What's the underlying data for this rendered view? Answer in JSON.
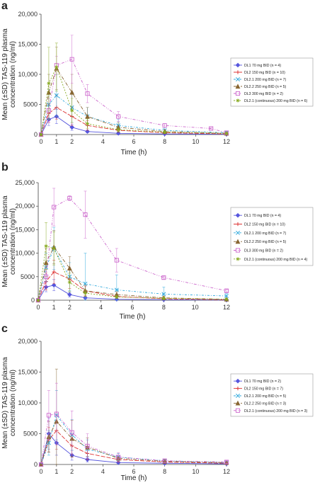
{
  "colors": {
    "DL1": "#5555dd",
    "DL2": "#dd3333",
    "DL2.1": "#33aadd",
    "DL2.2": "#886633",
    "DL3": "#cc66cc",
    "DL2.1c": "#88aa22"
  },
  "chart_data": [
    {
      "panel": "a",
      "type": "line",
      "xlabel": "Time (h)",
      "ylabel": "Mean (±SD) TAS-119 plasma concentration (ng/ml)",
      "xlim": [
        0,
        12
      ],
      "ylim": [
        0,
        20000
      ],
      "xticks": [
        0,
        1,
        2,
        4,
        6,
        8,
        10,
        12
      ],
      "yticks": [
        0,
        5000,
        10000,
        15000,
        20000
      ],
      "ytick_labels": [
        "0",
        "5000",
        "10,000",
        "15,000",
        "20,000"
      ],
      "legend_position": "right",
      "series": [
        {
          "name": "DL1 70 mg BID (n = 4)",
          "color_key": "DL1",
          "marker": "diamond",
          "x": [
            0,
            0.5,
            1,
            2,
            3,
            5,
            8,
            12
          ],
          "y": [
            0,
            2500,
            3000,
            1200,
            500,
            200,
            100,
            50
          ],
          "sd": [
            0,
            1000,
            1200,
            500,
            200,
            100,
            50,
            20
          ]
        },
        {
          "name": "DL2 150 mg BID (n = 10)",
          "color_key": "DL2",
          "marker": "plus",
          "x": [
            0,
            0.5,
            1,
            2,
            3,
            5,
            8,
            12
          ],
          "y": [
            0,
            3500,
            4500,
            3000,
            1500,
            700,
            300,
            100
          ],
          "sd": [
            0,
            1500,
            2000,
            1500,
            800,
            300,
            100,
            50
          ]
        },
        {
          "name": "DL2.1 200 mg BID (n = 7)",
          "color_key": "DL2.1",
          "marker": "x",
          "x": [
            0,
            0.5,
            1,
            2,
            3,
            5,
            8,
            12
          ],
          "y": [
            0,
            5000,
            6500,
            4500,
            3000,
            1500,
            700,
            300
          ],
          "sd": [
            0,
            2500,
            3500,
            2500,
            1500,
            1000,
            500,
            200
          ]
        },
        {
          "name": "DL2.2 250 mg BID (n = 5)",
          "color_key": "DL2.2",
          "marker": "triangle",
          "x": [
            0,
            0.5,
            1,
            2,
            3,
            5,
            8,
            12
          ],
          "y": [
            0,
            7000,
            11000,
            7000,
            3000,
            1200,
            500,
            200
          ],
          "sd": [
            0,
            3000,
            3500,
            3000,
            1500,
            800,
            300,
            100
          ]
        },
        {
          "name": "DL3 300 mg BID (n = 2)",
          "color_key": "DL3",
          "marker": "square",
          "x": [
            0,
            0.5,
            1,
            2,
            3,
            5,
            8,
            11,
            12
          ],
          "y": [
            0,
            4000,
            11500,
            12500,
            6800,
            3000,
            1500,
            1000,
            300
          ],
          "sd": [
            0,
            2000,
            1500,
            4000,
            1500,
            800,
            300,
            100,
            100
          ]
        },
        {
          "name": "DL2.1 (continuous) 200 mg BID (n = 6)",
          "color_key": "DL2.1c",
          "marker": "star",
          "x": [
            0,
            0.5,
            1,
            2,
            3,
            5,
            8,
            12
          ],
          "y": [
            0,
            8500,
            11200,
            4000,
            1800,
            800,
            400,
            200
          ],
          "sd": [
            0,
            6000,
            4000,
            2000,
            800,
            300,
            200,
            100
          ]
        }
      ]
    },
    {
      "panel": "b",
      "type": "line",
      "xlabel": "Time (h)",
      "ylabel": "Mean (±SD) TAS-119 plasma concentration (ng/ml)",
      "xlim": [
        0,
        12
      ],
      "ylim": [
        0,
        25000
      ],
      "xticks": [
        0,
        1,
        2,
        4,
        6,
        8,
        10,
        12
      ],
      "yticks": [
        0,
        5000,
        10000,
        15000,
        20000,
        25000
      ],
      "ytick_labels": [
        "0",
        "5000",
        "10,000",
        "15,000",
        "20,000",
        "25,000"
      ],
      "legend_position": "right",
      "series": [
        {
          "name": "DL1 70 mg BID (n = 4)",
          "color_key": "DL1",
          "marker": "diamond",
          "x": [
            0,
            0.5,
            1,
            2,
            3,
            5,
            8,
            12
          ],
          "y": [
            0,
            2800,
            3200,
            1200,
            500,
            200,
            100,
            50
          ],
          "sd": [
            0,
            1000,
            1200,
            500,
            200,
            100,
            50,
            20
          ]
        },
        {
          "name": "DL2 150 mg BID (n = 10)",
          "color_key": "DL2",
          "marker": "plus",
          "x": [
            0,
            0.5,
            1,
            2,
            3,
            5,
            8,
            12
          ],
          "y": [
            0,
            4000,
            6000,
            4500,
            2000,
            800,
            300,
            100
          ],
          "sd": [
            0,
            1800,
            2500,
            2000,
            1000,
            400,
            150,
            50
          ]
        },
        {
          "name": "DL2.1 200 mg BID (n = 7)",
          "color_key": "DL2.1",
          "marker": "x",
          "x": [
            0,
            0.5,
            1,
            2,
            3,
            5,
            8,
            12
          ],
          "y": [
            0,
            7000,
            11000,
            5000,
            3500,
            2200,
            1300,
            900
          ],
          "sd": [
            0,
            3000,
            4500,
            3000,
            6500,
            3200,
            1500,
            500
          ]
        },
        {
          "name": "DL2.2 250 mg BID (n = 5)",
          "color_key": "DL2.2",
          "marker": "triangle",
          "x": [
            0,
            0.5,
            1,
            2,
            3,
            5,
            8,
            12
          ],
          "y": [
            0,
            8000,
            11300,
            6800,
            2000,
            1200,
            500,
            200
          ],
          "sd": [
            0,
            3000,
            3500,
            2500,
            1200,
            600,
            300,
            100
          ]
        },
        {
          "name": "DL3 300 mg BID (n = 2)",
          "color_key": "DL3",
          "marker": "square",
          "x": [
            0,
            0.5,
            1,
            2,
            3,
            5,
            8,
            12
          ],
          "y": [
            0,
            5000,
            19800,
            21700,
            18200,
            8500,
            4800,
            2000
          ],
          "sd": [
            0,
            2000,
            4000,
            500,
            5000,
            2500,
            300,
            300
          ]
        },
        {
          "name": "DL2.1 (continuous) 200 mg BID (n = 4)",
          "color_key": "DL2.1c",
          "marker": "star",
          "x": [
            0,
            0.5,
            1,
            2,
            3,
            5,
            8,
            12
          ],
          "y": [
            0,
            11500,
            11000,
            3800,
            1500,
            700,
            400,
            200
          ],
          "sd": [
            0,
            5000,
            3500,
            2000,
            700,
            300,
            200,
            100
          ]
        }
      ]
    },
    {
      "panel": "c",
      "type": "line",
      "xlabel": "Time (h)",
      "ylabel": "Mean (±SD) TAS-119 plasma concentration (ng/ml)",
      "xlim": [
        0,
        12
      ],
      "ylim": [
        0,
        20000
      ],
      "xticks": [
        0,
        1,
        2,
        4,
        6,
        8,
        10,
        12
      ],
      "yticks": [
        0,
        5000,
        10000,
        15000,
        20000
      ],
      "ytick_labels": [
        "0",
        "5000",
        "10,000",
        "15,000",
        "20,000"
      ],
      "legend_position": "right",
      "series": [
        {
          "name": "DL1 70 mg BID (n = 2)",
          "color_key": "DL1",
          "marker": "diamond",
          "x": [
            0,
            0.5,
            1,
            2,
            3,
            5,
            8,
            12
          ],
          "y": [
            0,
            5000,
            3500,
            1500,
            800,
            300,
            200,
            100
          ],
          "sd": [
            0,
            2500,
            2000,
            800,
            400,
            150,
            100,
            50
          ]
        },
        {
          "name": "DL2 150 mg BID (n = 7)",
          "color_key": "DL2",
          "marker": "plus",
          "x": [
            0,
            0.5,
            1,
            2,
            3,
            5,
            8,
            12
          ],
          "y": [
            0,
            4000,
            5500,
            3000,
            1800,
            800,
            400,
            200
          ],
          "sd": [
            0,
            2000,
            3000,
            1800,
            1000,
            400,
            200,
            100
          ]
        },
        {
          "name": "DL2.1 200 mg BID (n = 5)",
          "color_key": "DL2.1",
          "marker": "x",
          "x": [
            0,
            0.5,
            1,
            2,
            3,
            5,
            8,
            12
          ],
          "y": [
            0,
            3500,
            8000,
            4800,
            2500,
            1200,
            600,
            300
          ],
          "sd": [
            0,
            2000,
            4000,
            2500,
            1500,
            600,
            300,
            150
          ]
        },
        {
          "name": "DL2.2 250 mg BID (n = 3)",
          "color_key": "DL2.2",
          "marker": "triangle",
          "x": [
            0,
            0.5,
            1,
            2,
            3,
            5,
            8,
            12
          ],
          "y": [
            0,
            4500,
            7000,
            4200,
            2800,
            1000,
            500,
            300
          ],
          "sd": [
            0,
            2500,
            8500,
            3000,
            1500,
            500,
            300,
            150
          ]
        },
        {
          "name": "DL2.1 (continuous) 200 mg BID (n = 3)",
          "color_key": "DL3",
          "marker": "square",
          "x": [
            0,
            0.5,
            1,
            2,
            3,
            5,
            8,
            12
          ],
          "y": [
            0,
            8000,
            8200,
            5200,
            3000,
            1200,
            600,
            400
          ],
          "sd": [
            0,
            4000,
            5000,
            3500,
            2000,
            700,
            300,
            200
          ]
        }
      ]
    }
  ]
}
